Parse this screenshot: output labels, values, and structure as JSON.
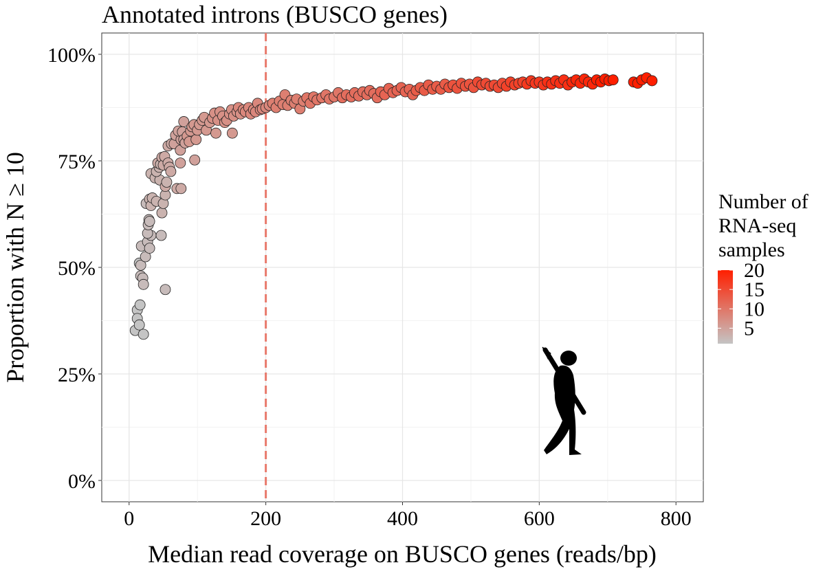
{
  "chart_data": {
    "type": "scatter",
    "title": "Annotated introns (BUSCO genes)",
    "xlabel": "Median read coverage on BUSCO genes (reads/bp)",
    "ylabel": "Proportion with N ≥ 10",
    "xlim": [
      -40,
      840
    ],
    "ylim": [
      -0.05,
      1.05
    ],
    "x_ticks": [
      0,
      200,
      400,
      600,
      800
    ],
    "x_tick_labels": [
      "0",
      "200",
      "400",
      "600",
      "800"
    ],
    "y_ticks": [
      0,
      0.25,
      0.5,
      0.75,
      1.0
    ],
    "y_tick_labels": [
      "0%",
      "25%",
      "50%",
      "75%",
      "100%"
    ],
    "grid": true,
    "reference_line": {
      "x": 200,
      "style": "dashed",
      "color": "#E8796B"
    },
    "legend": {
      "title_lines": [
        "Number of",
        "RNA-seq",
        "samples"
      ],
      "position": "right",
      "color_low": "#C4C4C4",
      "color_high": "#FF1F00",
      "range": [
        1,
        20
      ],
      "ticks": [
        5,
        10,
        15,
        20
      ],
      "tick_labels": [
        "5",
        "10",
        "15",
        "20"
      ]
    },
    "silhouette_icon": "walking-human-with-spear",
    "points": [
      [
        9,
        0.352,
        1
      ],
      [
        12,
        0.4,
        1
      ],
      [
        12,
        0.38,
        1
      ],
      [
        15,
        0.365,
        1
      ],
      [
        16,
        0.412,
        1
      ],
      [
        21,
        0.343,
        1
      ],
      [
        15,
        0.51,
        1
      ],
      [
        17,
        0.505,
        2
      ],
      [
        17,
        0.48,
        2
      ],
      [
        20,
        0.475,
        2
      ],
      [
        21,
        0.46,
        2
      ],
      [
        18,
        0.55,
        2
      ],
      [
        24,
        0.525,
        2
      ],
      [
        27,
        0.56,
        2
      ],
      [
        30,
        0.545,
        2
      ],
      [
        32,
        0.575,
        2
      ],
      [
        27,
        0.58,
        2
      ],
      [
        28,
        0.6,
        2
      ],
      [
        29,
        0.612,
        2
      ],
      [
        30,
        0.608,
        2
      ],
      [
        25,
        0.65,
        2
      ],
      [
        30,
        0.66,
        3
      ],
      [
        32,
        0.645,
        3
      ],
      [
        34,
        0.663,
        3
      ],
      [
        40,
        0.655,
        3
      ],
      [
        32,
        0.72,
        3
      ],
      [
        38,
        0.71,
        3
      ],
      [
        45,
        0.705,
        3
      ],
      [
        47,
        0.575,
        2
      ],
      [
        48,
        0.628,
        3
      ],
      [
        50,
        0.65,
        3
      ],
      [
        53,
        0.448,
        2
      ],
      [
        53,
        0.67,
        3
      ],
      [
        40,
        0.725,
        3
      ],
      [
        44,
        0.735,
        3
      ],
      [
        42,
        0.745,
        4
      ],
      [
        46,
        0.742,
        3
      ],
      [
        48,
        0.758,
        4
      ],
      [
        50,
        0.74,
        4
      ],
      [
        52,
        0.76,
        4
      ],
      [
        53,
        0.69,
        4
      ],
      [
        55,
        0.7,
        3
      ],
      [
        57,
        0.745,
        4
      ],
      [
        59,
        0.735,
        4
      ],
      [
        61,
        0.725,
        4
      ],
      [
        57,
        0.785,
        4
      ],
      [
        62,
        0.79,
        4
      ],
      [
        66,
        0.79,
        5
      ],
      [
        68,
        0.81,
        5
      ],
      [
        70,
        0.685,
        4
      ],
      [
        76,
        0.685,
        4
      ],
      [
        75,
        0.745,
        5
      ],
      [
        75,
        0.775,
        5
      ],
      [
        76,
        0.8,
        5
      ],
      [
        72,
        0.82,
        5
      ],
      [
        78,
        0.818,
        5
      ],
      [
        80,
        0.8,
        5
      ],
      [
        82,
        0.792,
        5
      ],
      [
        80,
        0.842,
        5
      ],
      [
        85,
        0.808,
        6
      ],
      [
        88,
        0.795,
        6
      ],
      [
        90,
        0.82,
        6
      ],
      [
        92,
        0.83,
        6
      ],
      [
        95,
        0.835,
        6
      ],
      [
        98,
        0.8,
        6
      ],
      [
        100,
        0.822,
        6
      ],
      [
        103,
        0.835,
        6
      ],
      [
        107,
        0.845,
        6
      ],
      [
        110,
        0.852,
        6
      ],
      [
        96,
        0.752,
        5
      ],
      [
        113,
        0.822,
        6
      ],
      [
        118,
        0.84,
        6
      ],
      [
        122,
        0.85,
        7
      ],
      [
        125,
        0.862,
        7
      ],
      [
        127,
        0.815,
        6
      ],
      [
        130,
        0.845,
        7
      ],
      [
        133,
        0.865,
        7
      ],
      [
        137,
        0.855,
        7
      ],
      [
        140,
        0.84,
        7
      ],
      [
        143,
        0.845,
        7
      ],
      [
        147,
        0.86,
        7
      ],
      [
        150,
        0.87,
        7
      ],
      [
        151,
        0.815,
        6
      ],
      [
        153,
        0.855,
        7
      ],
      [
        158,
        0.865,
        7
      ],
      [
        160,
        0.875,
        8
      ],
      [
        163,
        0.86,
        7
      ],
      [
        167,
        0.87,
        8
      ],
      [
        170,
        0.865,
        8
      ],
      [
        175,
        0.875,
        8
      ],
      [
        178,
        0.86,
        8
      ],
      [
        182,
        0.87,
        8
      ],
      [
        185,
        0.865,
        8
      ],
      [
        188,
        0.885,
        8
      ],
      [
        192,
        0.87,
        8
      ],
      [
        195,
        0.872,
        8
      ],
      [
        200,
        0.875,
        8
      ],
      [
        205,
        0.88,
        8
      ],
      [
        210,
        0.885,
        9
      ],
      [
        215,
        0.875,
        9
      ],
      [
        220,
        0.89,
        9
      ],
      [
        225,
        0.882,
        9
      ],
      [
        228,
        0.905,
        9
      ],
      [
        232,
        0.88,
        9
      ],
      [
        237,
        0.892,
        9
      ],
      [
        242,
        0.885,
        9
      ],
      [
        245,
        0.895,
        9
      ],
      [
        250,
        0.872,
        9
      ],
      [
        255,
        0.89,
        9
      ],
      [
        260,
        0.898,
        10
      ],
      [
        265,
        0.885,
        10
      ],
      [
        270,
        0.9,
        10
      ],
      [
        275,
        0.893,
        10
      ],
      [
        282,
        0.898,
        10
      ],
      [
        288,
        0.905,
        10
      ],
      [
        293,
        0.895,
        10
      ],
      [
        300,
        0.9,
        10
      ],
      [
        306,
        0.91,
        10
      ],
      [
        312,
        0.898,
        11
      ],
      [
        318,
        0.905,
        11
      ],
      [
        325,
        0.9,
        11
      ],
      [
        330,
        0.91,
        11
      ],
      [
        336,
        0.902,
        11
      ],
      [
        342,
        0.912,
        11
      ],
      [
        348,
        0.905,
        11
      ],
      [
        352,
        0.915,
        11
      ],
      [
        358,
        0.908,
        11
      ],
      [
        363,
        0.898,
        11
      ],
      [
        368,
        0.912,
        12
      ],
      [
        374,
        0.905,
        12
      ],
      [
        380,
        0.92,
        12
      ],
      [
        386,
        0.91,
        12
      ],
      [
        392,
        0.915,
        12
      ],
      [
        398,
        0.922,
        12
      ],
      [
        404,
        0.912,
        12
      ],
      [
        410,
        0.918,
        12
      ],
      [
        415,
        0.905,
        12
      ],
      [
        420,
        0.915,
        13
      ],
      [
        426,
        0.922,
        13
      ],
      [
        432,
        0.915,
        13
      ],
      [
        438,
        0.928,
        13
      ],
      [
        444,
        0.918,
        13
      ],
      [
        450,
        0.925,
        13
      ],
      [
        456,
        0.918,
        13
      ],
      [
        462,
        0.93,
        13
      ],
      [
        468,
        0.922,
        14
      ],
      [
        474,
        0.928,
        14
      ],
      [
        480,
        0.92,
        14
      ],
      [
        486,
        0.932,
        14
      ],
      [
        492,
        0.925,
        14
      ],
      [
        498,
        0.93,
        14
      ],
      [
        504,
        0.922,
        14
      ],
      [
        510,
        0.935,
        15
      ],
      [
        516,
        0.928,
        15
      ],
      [
        522,
        0.932,
        15
      ],
      [
        528,
        0.925,
        15
      ],
      [
        534,
        0.928,
        15
      ],
      [
        540,
        0.922,
        15
      ],
      [
        546,
        0.932,
        15
      ],
      [
        552,
        0.925,
        16
      ],
      [
        558,
        0.935,
        16
      ],
      [
        564,
        0.928,
        16
      ],
      [
        570,
        0.932,
        16
      ],
      [
        576,
        0.935,
        16
      ],
      [
        582,
        0.93,
        17
      ],
      [
        588,
        0.938,
        17
      ],
      [
        594,
        0.932,
        17
      ],
      [
        600,
        0.935,
        17
      ],
      [
        606,
        0.928,
        17
      ],
      [
        612,
        0.935,
        18
      ],
      [
        618,
        0.93,
        18
      ],
      [
        624,
        0.938,
        18
      ],
      [
        630,
        0.932,
        18
      ],
      [
        636,
        0.94,
        18
      ],
      [
        642,
        0.928,
        18
      ],
      [
        648,
        0.935,
        19
      ],
      [
        654,
        0.94,
        19
      ],
      [
        660,
        0.932,
        19
      ],
      [
        666,
        0.942,
        19
      ],
      [
        672,
        0.935,
        19
      ],
      [
        678,
        0.93,
        19
      ],
      [
        684,
        0.94,
        20
      ],
      [
        690,
        0.935,
        20
      ],
      [
        696,
        0.942,
        20
      ],
      [
        702,
        0.938,
        20
      ],
      [
        708,
        0.94,
        20
      ],
      [
        738,
        0.935,
        20
      ],
      [
        744,
        0.932,
        20
      ],
      [
        750,
        0.94,
        20
      ],
      [
        757,
        0.945,
        20
      ],
      [
        765,
        0.938,
        20
      ]
    ]
  }
}
